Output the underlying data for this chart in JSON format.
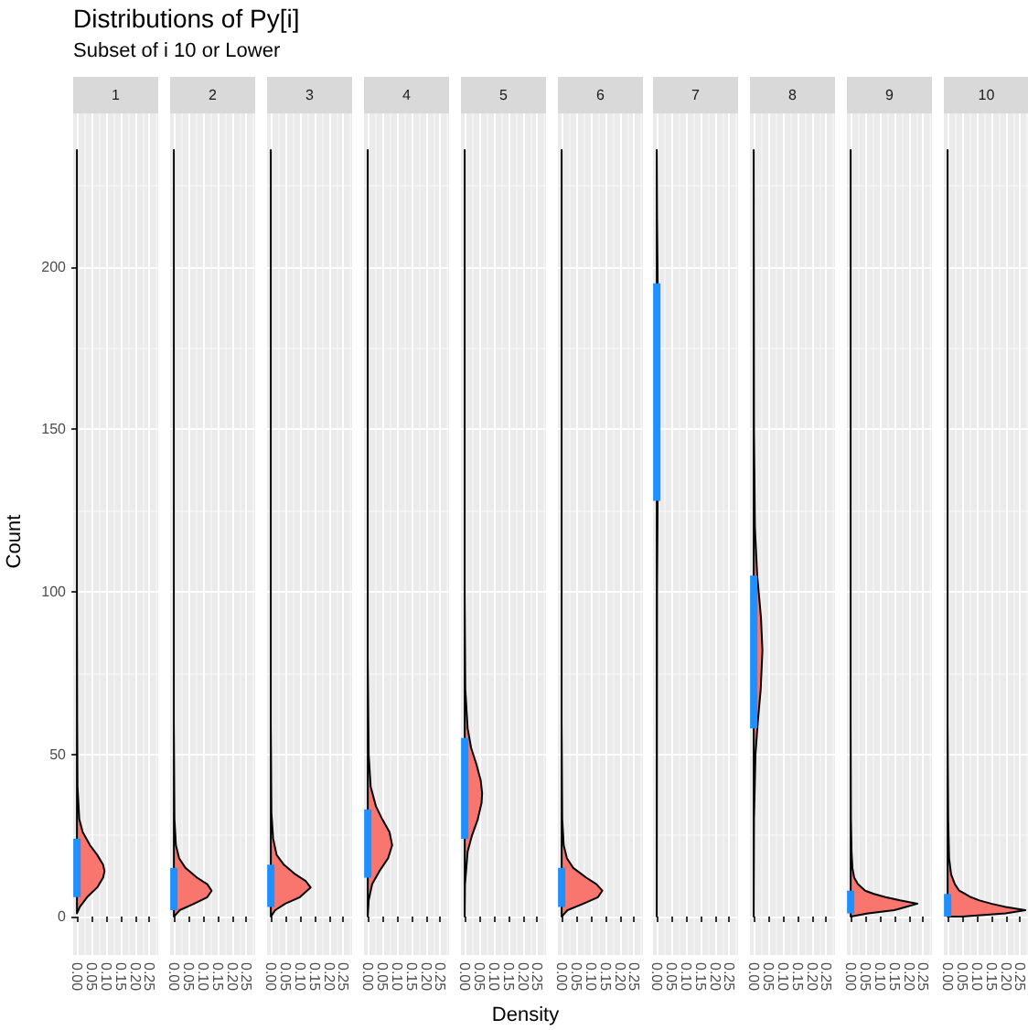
{
  "chart_data": [
    {
      "type": "area",
      "orientation": "horizontal",
      "title": "Distributions of Py[i]",
      "subtitle": "Subset of i 10 or Lower",
      "ylabel": "Count",
      "annotations": [
        "1"
      ],
      "xlim": [
        -0.013,
        0.28
      ],
      "xticks": [
        {
          "value": 0,
          "label": "0.00"
        },
        {
          "value": 0.05,
          "label": "0.05"
        },
        {
          "value": 0.1,
          "label": "0.10"
        },
        {
          "value": 0.15,
          "label": "0.15"
        },
        {
          "value": 0.2,
          "label": "0.20"
        },
        {
          "value": 0.25,
          "label": "0.25"
        }
      ],
      "ylim": [
        -11.8,
        247.3
      ],
      "yticks": [
        0,
        50,
        100,
        150,
        200
      ],
      "grid": true,
      "series": [
        {
          "color": "#f8766d",
          "x": [
            1,
            3,
            6,
            9,
            12,
            14,
            16,
            19,
            22,
            26,
            30,
            40,
            60,
            100,
            236
          ],
          "values": [
            0,
            0.01,
            0.035,
            0.07,
            0.09,
            0.095,
            0.09,
            0.07,
            0.045,
            0.02,
            0.008,
            0.002,
            0.001,
            0,
            0
          ]
        },
        {
          "type": "line",
          "color": "#1e90ff",
          "x": [
            6,
            24
          ],
          "values": [
            0,
            0
          ]
        }
      ]
    },
    {
      "type": "area",
      "orientation": "horizontal",
      "annotations": [
        "2"
      ],
      "xlim": [
        -0.013,
        0.28
      ],
      "xticks": [
        {
          "value": 0,
          "label": "0.00"
        },
        {
          "value": 0.05,
          "label": "0.05"
        },
        {
          "value": 0.1,
          "label": "0.10"
        },
        {
          "value": 0.15,
          "label": "0.15"
        },
        {
          "value": 0.2,
          "label": "0.20"
        },
        {
          "value": 0.25,
          "label": "0.25"
        }
      ],
      "ylim": [
        -11.8,
        247.3
      ],
      "yticks": [
        0,
        50,
        100,
        150,
        200
      ],
      "grid": true,
      "tick_labels": "x",
      "series": [
        {
          "color": "#f8766d",
          "x": [
            0,
            2,
            4,
            6,
            8,
            10,
            12,
            15,
            18,
            22,
            30,
            60,
            236
          ],
          "values": [
            0,
            0.02,
            0.07,
            0.115,
            0.13,
            0.115,
            0.08,
            0.04,
            0.018,
            0.007,
            0.002,
            0,
            0
          ]
        },
        {
          "type": "line",
          "color": "#1e90ff",
          "x": [
            2,
            15
          ],
          "values": [
            0,
            0
          ]
        }
      ]
    },
    {
      "type": "area",
      "orientation": "horizontal",
      "annotations": [
        "3"
      ],
      "xlim": [
        -0.013,
        0.28
      ],
      "xticks": [
        {
          "value": 0,
          "label": "0.00"
        },
        {
          "value": 0.05,
          "label": "0.05"
        },
        {
          "value": 0.1,
          "label": "0.10"
        },
        {
          "value": 0.15,
          "label": "0.15"
        },
        {
          "value": 0.2,
          "label": "0.20"
        },
        {
          "value": 0.25,
          "label": "0.25"
        }
      ],
      "ylim": [
        -11.8,
        247.3
      ],
      "yticks": [
        0,
        50,
        100,
        150,
        200
      ],
      "grid": true,
      "tick_labels": "x",
      "series": [
        {
          "color": "#f8766d",
          "x": [
            0,
            2,
            4,
            6,
            9,
            11,
            13,
            16,
            19,
            24,
            32,
            60,
            236
          ],
          "values": [
            0,
            0.015,
            0.05,
            0.1,
            0.137,
            0.12,
            0.085,
            0.045,
            0.02,
            0.008,
            0.002,
            0,
            0
          ]
        },
        {
          "type": "line",
          "color": "#1e90ff",
          "x": [
            3,
            16
          ],
          "values": [
            0,
            0
          ]
        }
      ]
    },
    {
      "type": "area",
      "orientation": "horizontal",
      "annotations": [
        "4"
      ],
      "xlim": [
        -0.013,
        0.28
      ],
      "xticks": [
        {
          "value": 0,
          "label": "0.00"
        },
        {
          "value": 0.05,
          "label": "0.05"
        },
        {
          "value": 0.1,
          "label": "0.10"
        },
        {
          "value": 0.15,
          "label": "0.15"
        },
        {
          "value": 0.2,
          "label": "0.20"
        },
        {
          "value": 0.25,
          "label": "0.25"
        }
      ],
      "ylim": [
        -11.8,
        247.3
      ],
      "yticks": [
        0,
        50,
        100,
        150,
        200
      ],
      "grid": true,
      "tick_labels": "x",
      "series": [
        {
          "color": "#f8766d",
          "x": [
            0,
            5,
            10,
            14,
            18,
            22,
            26,
            30,
            34,
            40,
            50,
            80,
            236
          ],
          "values": [
            0,
            0.003,
            0.015,
            0.04,
            0.07,
            0.084,
            0.075,
            0.05,
            0.028,
            0.01,
            0.003,
            0,
            0
          ]
        },
        {
          "type": "line",
          "color": "#1e90ff",
          "x": [
            12,
            33
          ],
          "values": [
            0,
            0
          ]
        }
      ]
    },
    {
      "type": "area",
      "orientation": "horizontal",
      "annotations": [
        "5"
      ],
      "xlabel": "Density",
      "xlim": [
        -0.013,
        0.28
      ],
      "xticks": [
        {
          "value": 0,
          "label": "0.00"
        },
        {
          "value": 0.05,
          "label": "0.05"
        },
        {
          "value": 0.1,
          "label": "0.10"
        },
        {
          "value": 0.15,
          "label": "0.15"
        },
        {
          "value": 0.2,
          "label": "0.20"
        },
        {
          "value": 0.25,
          "label": "0.25"
        }
      ],
      "ylim": [
        -11.8,
        247.3
      ],
      "yticks": [
        0,
        50,
        100,
        150,
        200
      ],
      "grid": true,
      "tick_labels": "x",
      "series": [
        {
          "color": "#f8766d",
          "x": [
            0,
            10,
            20,
            25,
            30,
            35,
            38,
            42,
            47,
            52,
            58,
            70,
            100,
            236
          ],
          "values": [
            0,
            0.001,
            0.01,
            0.025,
            0.045,
            0.058,
            0.06,
            0.055,
            0.04,
            0.022,
            0.01,
            0.002,
            0,
            0
          ]
        },
        {
          "type": "line",
          "color": "#1e90ff",
          "x": [
            24,
            55
          ],
          "values": [
            0,
            0
          ]
        }
      ]
    },
    {
      "type": "area",
      "orientation": "horizontal",
      "annotations": [
        "6"
      ],
      "xlim": [
        -0.013,
        0.28
      ],
      "xticks": [
        {
          "value": 0,
          "label": "0.00"
        },
        {
          "value": 0.05,
          "label": "0.05"
        },
        {
          "value": 0.1,
          "label": "0.10"
        },
        {
          "value": 0.15,
          "label": "0.15"
        },
        {
          "value": 0.2,
          "label": "0.20"
        },
        {
          "value": 0.25,
          "label": "0.25"
        }
      ],
      "ylim": [
        -11.8,
        247.3
      ],
      "yticks": [
        0,
        50,
        100,
        150,
        200
      ],
      "grid": true,
      "tick_labels": "x",
      "series": [
        {
          "color": "#f8766d",
          "x": [
            0,
            2,
            4,
            6,
            8,
            10,
            12,
            15,
            18,
            22,
            30,
            60,
            236
          ],
          "values": [
            0,
            0.02,
            0.075,
            0.125,
            0.14,
            0.12,
            0.085,
            0.04,
            0.018,
            0.007,
            0.002,
            0,
            0
          ]
        },
        {
          "type": "line",
          "color": "#1e90ff",
          "x": [
            3,
            15
          ],
          "values": [
            0,
            0
          ]
        }
      ]
    },
    {
      "type": "area",
      "orientation": "horizontal",
      "annotations": [
        "7"
      ],
      "xlim": [
        -0.013,
        0.28
      ],
      "xticks": [
        {
          "value": 0,
          "label": "0.00"
        },
        {
          "value": 0.05,
          "label": "0.05"
        },
        {
          "value": 0.1,
          "label": "0.10"
        },
        {
          "value": 0.15,
          "label": "0.15"
        },
        {
          "value": 0.2,
          "label": "0.20"
        },
        {
          "value": 0.25,
          "label": "0.25"
        }
      ],
      "ylim": [
        -11.8,
        247.3
      ],
      "yticks": [
        0,
        50,
        100,
        150,
        200
      ],
      "grid": true,
      "tick_labels": "x",
      "series": [
        {
          "color": "#f8766d",
          "x": [
            0,
            100,
            130,
            150,
            164,
            180,
            195,
            215,
            236
          ],
          "values": [
            0,
            0.001,
            0.003,
            0.005,
            0.006,
            0.005,
            0.003,
            0.001,
            0
          ]
        },
        {
          "type": "line",
          "color": "#1e90ff",
          "x": [
            128,
            195
          ],
          "values": [
            0,
            0
          ]
        }
      ]
    },
    {
      "type": "area",
      "orientation": "horizontal",
      "annotations": [
        "8"
      ],
      "xlim": [
        -0.013,
        0.28
      ],
      "xticks": [
        {
          "value": 0,
          "label": "0.00"
        },
        {
          "value": 0.05,
          "label": "0.05"
        },
        {
          "value": 0.1,
          "label": "0.10"
        },
        {
          "value": 0.15,
          "label": "0.15"
        },
        {
          "value": 0.2,
          "label": "0.20"
        },
        {
          "value": 0.25,
          "label": "0.25"
        }
      ],
      "ylim": [
        -11.8,
        247.3
      ],
      "yticks": [
        0,
        50,
        100,
        150,
        200
      ],
      "grid": true,
      "tick_labels": "x",
      "series": [
        {
          "color": "#f8766d",
          "x": [
            0,
            30,
            50,
            60,
            70,
            82,
            92,
            105,
            120,
            150,
            236
          ],
          "values": [
            0,
            0.001,
            0.006,
            0.014,
            0.024,
            0.03,
            0.025,
            0.012,
            0.004,
            0.001,
            0
          ]
        },
        {
          "type": "line",
          "color": "#1e90ff",
          "x": [
            58,
            105
          ],
          "values": [
            0,
            0
          ]
        }
      ]
    },
    {
      "type": "area",
      "orientation": "horizontal",
      "annotations": [
        "9"
      ],
      "xlim": [
        -0.013,
        0.28
      ],
      "xticks": [
        {
          "value": 0,
          "label": "0.00"
        },
        {
          "value": 0.05,
          "label": "0.05"
        },
        {
          "value": 0.1,
          "label": "0.10"
        },
        {
          "value": 0.15,
          "label": "0.15"
        },
        {
          "value": 0.2,
          "label": "0.20"
        },
        {
          "value": 0.25,
          "label": "0.25"
        }
      ],
      "ylim": [
        -11.8,
        247.3
      ],
      "yticks": [
        0,
        50,
        100,
        150,
        200
      ],
      "grid": true,
      "tick_labels": "x",
      "series": [
        {
          "color": "#f8766d",
          "x": [
            0,
            1,
            2,
            3,
            4,
            5,
            6,
            7,
            8,
            10,
            12,
            15,
            20,
            30,
            60,
            236
          ],
          "values": [
            0,
            0.06,
            0.15,
            0.19,
            0.23,
            0.17,
            0.12,
            0.08,
            0.05,
            0.025,
            0.012,
            0.006,
            0.003,
            0.001,
            0,
            0
          ]
        },
        {
          "type": "line",
          "color": "#1e90ff",
          "x": [
            1,
            8
          ],
          "values": [
            0,
            0
          ]
        }
      ]
    },
    {
      "type": "area",
      "orientation": "horizontal",
      "annotations": [
        "10"
      ],
      "xlim": [
        -0.013,
        0.28
      ],
      "xticks": [
        {
          "value": 0,
          "label": "0.00"
        },
        {
          "value": 0.05,
          "label": "0.05"
        },
        {
          "value": 0.1,
          "label": "0.10"
        },
        {
          "value": 0.15,
          "label": "0.15"
        },
        {
          "value": 0.2,
          "label": "0.20"
        },
        {
          "value": 0.25,
          "label": "0.25"
        }
      ],
      "ylim": [
        -11.8,
        247.3
      ],
      "yticks": [
        0,
        50,
        100,
        150,
        200
      ],
      "grid": true,
      "tick_labels": "x",
      "series": [
        {
          "color": "#f8766d",
          "x": [
            0,
            1,
            2,
            3,
            4,
            5,
            6,
            7,
            8,
            10,
            13,
            18,
            30,
            60,
            236
          ],
          "values": [
            0.05,
            0.2,
            0.268,
            0.2,
            0.15,
            0.11,
            0.08,
            0.06,
            0.04,
            0.025,
            0.012,
            0.005,
            0.002,
            0,
            0
          ]
        },
        {
          "type": "line",
          "color": "#1e90ff",
          "x": [
            0,
            7
          ],
          "values": [
            0,
            0
          ]
        }
      ]
    }
  ]
}
